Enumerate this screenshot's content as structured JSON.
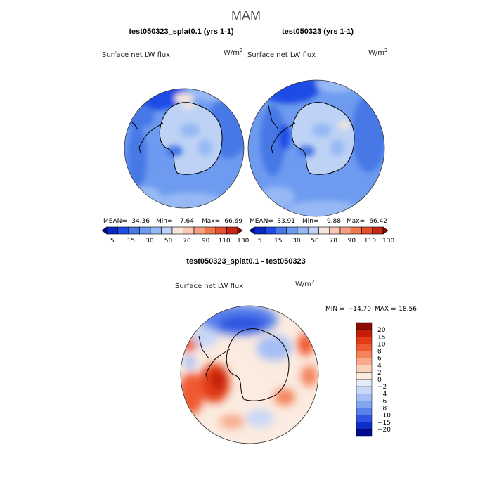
{
  "season": "MAM",
  "chart_data": [
    {
      "type": "heatmap",
      "panel": "top-left",
      "title": "test050323_splat0.1 (yrs 1-1)",
      "variable": "Surface net LW flux",
      "units": "W/m2",
      "mean_label": "MEAN=",
      "mean": "34.36",
      "min_label": "Min=",
      "min": "7.64",
      "max_label": "Max=",
      "max": "66.69",
      "colorbar_ticks": [
        "5",
        "15",
        "30",
        "50",
        "70",
        "90",
        "110",
        "130"
      ]
    },
    {
      "type": "heatmap",
      "panel": "top-right",
      "title": "test050323 (yrs 1-1)",
      "variable": "Surface net LW flux",
      "units": "W/m2",
      "mean_label": "MEAN=",
      "mean": "33.91",
      "min_label": "Min=",
      "min": "9.88",
      "max_label": "Max=",
      "max": "66.42",
      "colorbar_ticks": [
        "5",
        "15",
        "30",
        "50",
        "70",
        "90",
        "110",
        "130"
      ]
    },
    {
      "type": "heatmap",
      "panel": "bottom",
      "title": "test050323_splat0.1 - test050323",
      "variable": "Surface net LW flux",
      "units": "W/m2",
      "min_label": "MIN =",
      "min": "−14.70",
      "max_label": "MAX =",
      "max": "18.56",
      "colorbar_levels": [
        "20",
        "15",
        "10",
        "8",
        "6",
        "4",
        "2",
        "0",
        "−2",
        "−4",
        "−6",
        "−8",
        "−10",
        "−15",
        "−20"
      ]
    }
  ],
  "palettes": {
    "abs": [
      "#000a8c",
      "#0a28c8",
      "#1e4be6",
      "#4678e6",
      "#6e9bf0",
      "#96b9f5",
      "#bed2f5",
      "#f5e6dc",
      "#fac8b4",
      "#f5a082",
      "#f07850",
      "#e6502d",
      "#c82814",
      "#8c0a00"
    ],
    "diff": [
      "#8c0a00",
      "#c31e0a",
      "#e13c14",
      "#f05a32",
      "#f5825a",
      "#f8aa8c",
      "#fad2bc",
      "#fbebe0",
      "#e3ebfa",
      "#c8d7f8",
      "#a5bef5",
      "#82a5f0",
      "#5a82eb",
      "#2d55e1",
      "#0f2dc8",
      "#000a8c"
    ]
  }
}
